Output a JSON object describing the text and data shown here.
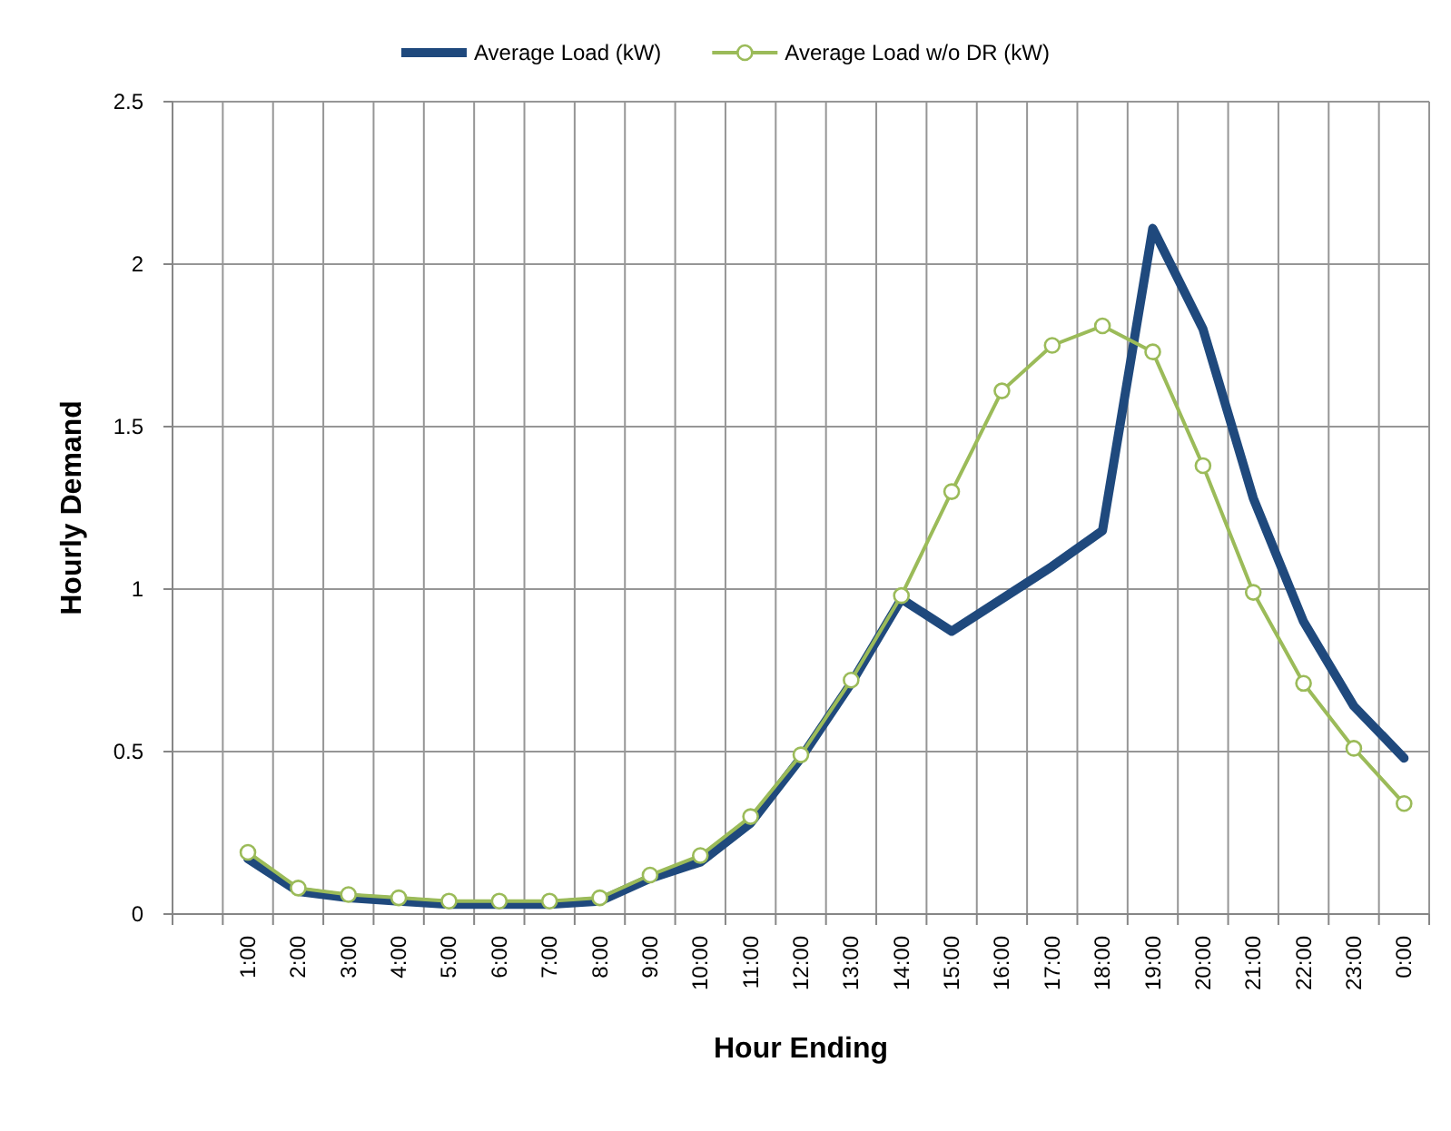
{
  "chart_data": {
    "type": "line",
    "xlabel": "Hour Ending",
    "ylabel": "Hourly Demand",
    "categories": [
      null,
      "1:00",
      "2:00",
      "3:00",
      "4:00",
      "5:00",
      "6:00",
      "7:00",
      "8:00",
      "9:00",
      "10:00",
      "11:00",
      "12:00",
      "13:00",
      "14:00",
      "15:00",
      "16:00",
      "17:00",
      "18:00",
      "19:00",
      "20:00",
      "21:00",
      "22:00",
      "23:00",
      "0:00"
    ],
    "series": [
      {
        "name": "Average Load (kW)",
        "color": "#1f497d",
        "values": [
          null,
          0.17,
          0.07,
          0.05,
          0.04,
          0.03,
          0.03,
          0.03,
          0.04,
          0.11,
          0.16,
          0.28,
          0.48,
          0.71,
          0.97,
          0.87,
          0.97,
          1.07,
          1.18,
          2.11,
          1.8,
          1.28,
          0.9,
          0.64,
          0.48
        ]
      },
      {
        "name": "Average Load w/o DR (kW)",
        "color": "#9bbb59",
        "marker": "circle",
        "values": [
          null,
          0.19,
          0.08,
          0.06,
          0.05,
          0.04,
          0.04,
          0.04,
          0.05,
          0.12,
          0.18,
          0.3,
          0.49,
          0.72,
          0.98,
          1.3,
          1.61,
          1.75,
          1.81,
          1.73,
          1.38,
          0.99,
          0.71,
          0.51,
          0.34
        ]
      }
    ],
    "ylim": [
      0,
      2.5
    ],
    "yticks": [
      0,
      0.5,
      1,
      1.5,
      2,
      2.5
    ],
    "grid": true,
    "legend": "top"
  }
}
